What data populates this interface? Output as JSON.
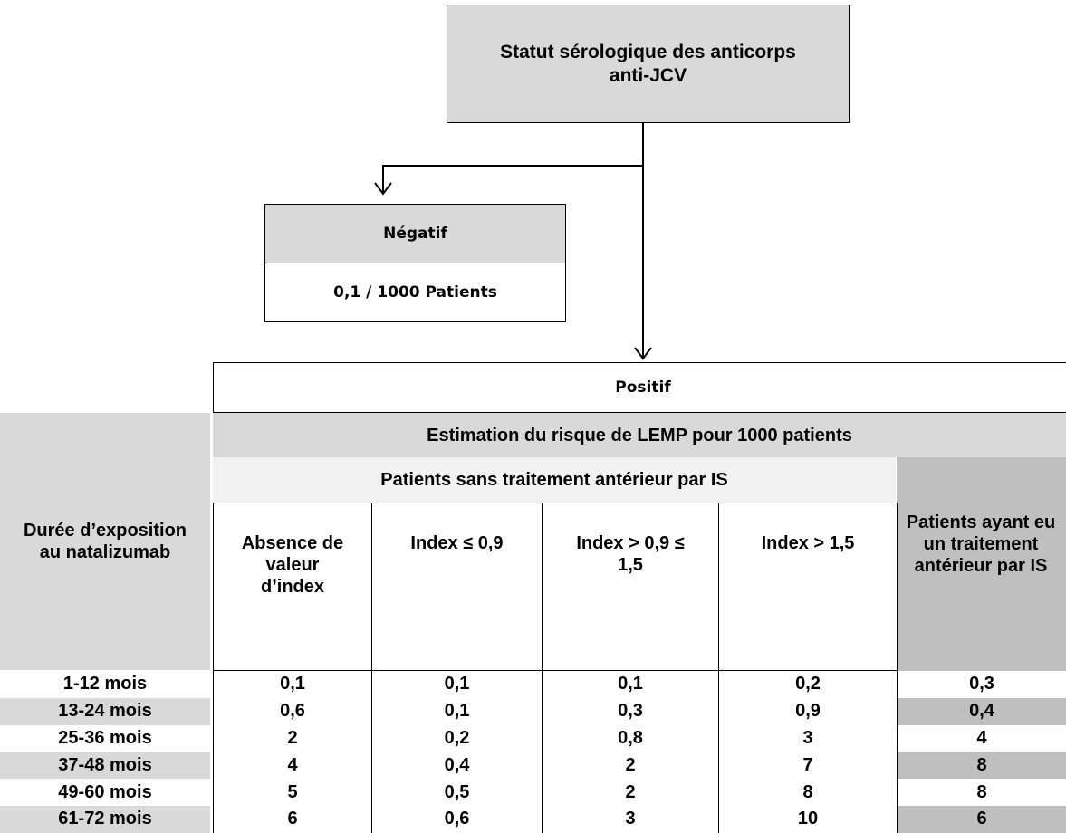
{
  "top_box": "Statut sérologique des anticorps anti-JCV",
  "negative": {
    "label": "Négatif",
    "value": "0,1 / 1000 Patients"
  },
  "table": {
    "positive": "Positif",
    "estimation": "Estimation du risque de LEMP pour 1000 patients",
    "duration_header": "Durée d’exposition au natalizumab",
    "group_no_prior": "Patients sans traitement antérieur par IS",
    "group_prior": "Patients ayant eu un traitement antérieur par IS",
    "columns": [
      "Absence de valeur d’index",
      "Index ≤ 0,9",
      "Index > 0,9 ≤ 1,5",
      "Index > 1,5"
    ],
    "rows": [
      {
        "duration": "1-12 mois",
        "values": [
          "0,1",
          "0,1",
          "0,1",
          "0,2",
          "0,3"
        ]
      },
      {
        "duration": "13-24 mois",
        "values": [
          "0,6",
          "0,1",
          "0,3",
          "0,9",
          "0,4"
        ]
      },
      {
        "duration": "25-36 mois",
        "values": [
          "2",
          "0,2",
          "0,8",
          "3",
          "4"
        ]
      },
      {
        "duration": "37-48 mois",
        "values": [
          "4",
          "0,4",
          "2",
          "7",
          "8"
        ]
      },
      {
        "duration": "49-60 mois",
        "values": [
          "5",
          "0,5",
          "2",
          "8",
          "8"
        ]
      },
      {
        "duration": "61-72 mois",
        "values": [
          "6",
          "0,6",
          "3",
          "10",
          "6"
        ]
      }
    ]
  }
}
